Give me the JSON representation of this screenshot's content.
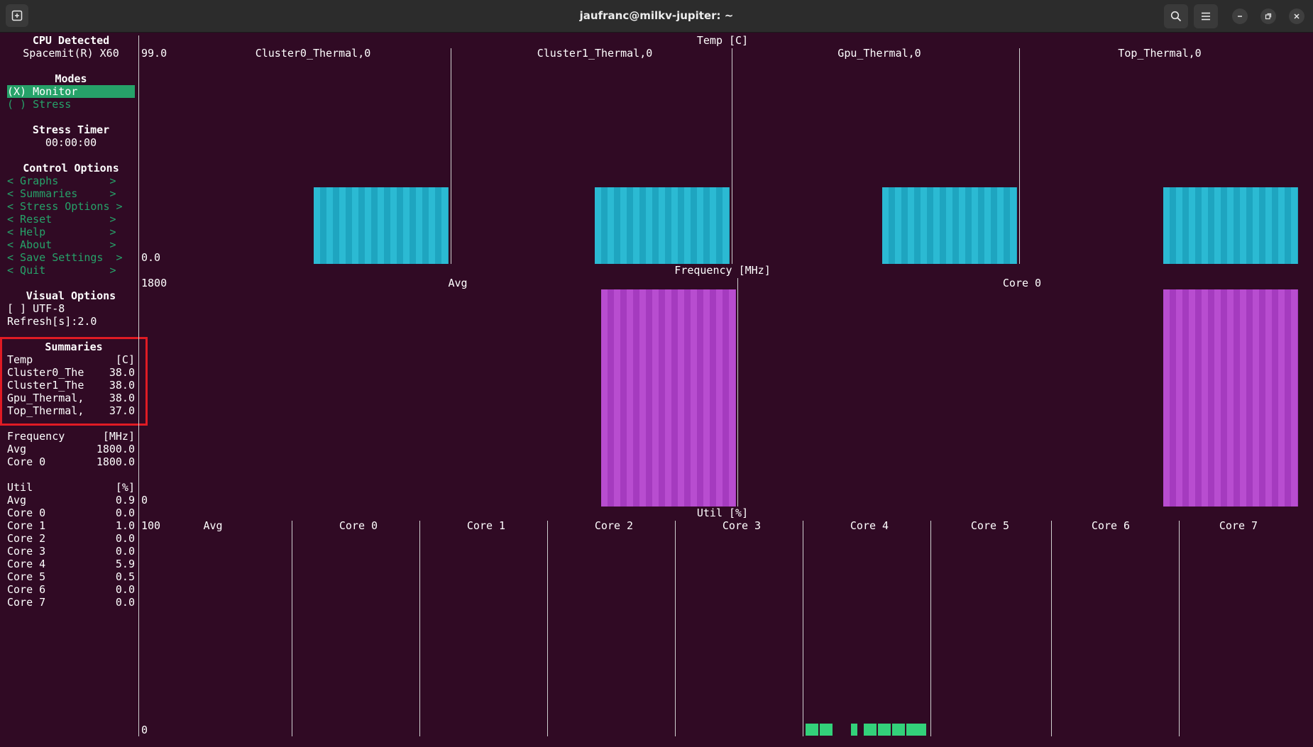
{
  "window": {
    "title": "jaufranc@milkv-jupiter: ~",
    "icons": [
      "new-tab-icon",
      "search-icon",
      "menu-icon",
      "minimize-icon",
      "maximize-icon",
      "close-icon"
    ]
  },
  "sidebar": {
    "cpu_heading": "CPU Detected",
    "cpu_name": "Spacemit(R) X60",
    "modes_heading": "Modes",
    "modes": [
      {
        "label": "(X) Monitor",
        "selected": true
      },
      {
        "label": "( ) Stress",
        "selected": false
      }
    ],
    "stress_timer_heading": "Stress Timer",
    "stress_timer_value": "00:00:00",
    "control_heading": "Control Options",
    "controls": [
      "< Graphs        >",
      "< Summaries     >",
      "< Stress Options >",
      "< Reset         >",
      "< Help          >",
      "< About         >",
      "< Save Settings  >",
      "< Quit          >"
    ],
    "visual_heading": "Visual Options",
    "utf8_option": "[ ] UTF-8",
    "refresh": "Refresh[s]:2.0"
  },
  "summaries": {
    "heading": "Summaries",
    "temp": {
      "label": "Temp",
      "unit": "[C]",
      "rows": [
        {
          "name": "Cluster0_The",
          "value": "38.0"
        },
        {
          "name": "Cluster1_The",
          "value": "38.0"
        },
        {
          "name": "Gpu_Thermal,",
          "value": "38.0"
        },
        {
          "name": "Top_Thermal,",
          "value": "37.0"
        }
      ]
    },
    "frequency": {
      "label": "Frequency",
      "unit": "[MHz]",
      "rows": [
        {
          "name": "Avg",
          "value": "1800.0"
        },
        {
          "name": "Core 0",
          "value": "1800.0"
        }
      ]
    },
    "util": {
      "label": "Util",
      "unit": "[%]",
      "rows": [
        {
          "name": "Avg",
          "value": "0.9"
        },
        {
          "name": "Core 0",
          "value": "0.0"
        },
        {
          "name": "Core 1",
          "value": "1.0"
        },
        {
          "name": "Core 2",
          "value": "0.0"
        },
        {
          "name": "Core 3",
          "value": "0.0"
        },
        {
          "name": "Core 4",
          "value": "5.9"
        },
        {
          "name": "Core 5",
          "value": "0.5"
        },
        {
          "name": "Core 6",
          "value": "0.0"
        },
        {
          "name": "Core 7",
          "value": "0.0"
        }
      ]
    }
  },
  "graphs": {
    "temp": {
      "title": "Temp [C]",
      "ymax": "99.0",
      "ymin": "0.0",
      "panels": [
        "Cluster0_Thermal,0",
        "Cluster1_Thermal,0",
        "Gpu_Thermal,0",
        "Top_Thermal,0"
      ],
      "bar_color": "#2bbad3"
    },
    "frequency": {
      "title": "Frequency [MHz]",
      "ymax": "1800",
      "ymin": "0",
      "panels": [
        "Avg",
        "Core 0"
      ],
      "bar_color": "#b84dd0"
    },
    "util": {
      "title": "Util [%]",
      "ymax": "100",
      "ymin": "0",
      "panels": [
        "Avg",
        "Core 0",
        "Core 1",
        "Core 2",
        "Core 3",
        "Core 4",
        "Core 5",
        "Core 6",
        "Core 7"
      ],
      "bar_color": "#33d17a"
    }
  },
  "colors": {
    "background": "#300a24",
    "accent_green": "#26a269",
    "highlight_red": "#e01b24"
  }
}
